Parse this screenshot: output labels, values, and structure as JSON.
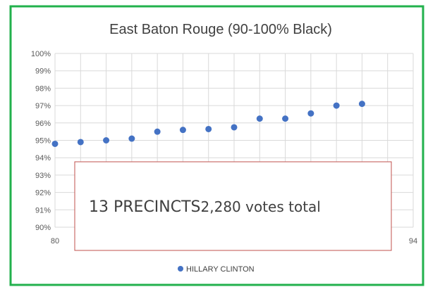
{
  "chart_data": {
    "type": "scatter",
    "title": "East Baton Rouge (90-100% Black)",
    "xlabel": "",
    "ylabel": "",
    "xlim": [
      80,
      94
    ],
    "ylim": [
      90,
      100
    ],
    "x_ticks_shown": [
      "80",
      "94"
    ],
    "y_ticks": [
      "90%",
      "91%",
      "92%",
      "93%",
      "94%",
      "95%",
      "96%",
      "97%",
      "98%",
      "99%",
      "100%"
    ],
    "grid": true,
    "legend": "bottom-center",
    "series": [
      {
        "name": "HILLARY CLINTON",
        "color": "#4472c4",
        "points": [
          {
            "x": 80,
            "y": 94.8
          },
          {
            "x": 81,
            "y": 94.9
          },
          {
            "x": 82,
            "y": 95.0
          },
          {
            "x": 83,
            "y": 95.1
          },
          {
            "x": 84,
            "y": 95.5
          },
          {
            "x": 85,
            "y": 95.6
          },
          {
            "x": 86,
            "y": 95.65
          },
          {
            "x": 87,
            "y": 95.75
          },
          {
            "x": 88,
            "y": 96.25
          },
          {
            "x": 89,
            "y": 96.25
          },
          {
            "x": 90,
            "y": 96.55
          },
          {
            "x": 91,
            "y": 97.0
          },
          {
            "x": 92,
            "y": 97.1
          }
        ]
      }
    ],
    "annotation": {
      "part1": "13 PRECINCTS",
      "part2": "2,280 votes total"
    }
  },
  "colors": {
    "frame_border": "#22b14c",
    "annotation_border": "#c0504d",
    "grid": "#d9d9d9",
    "text": "#595959"
  }
}
